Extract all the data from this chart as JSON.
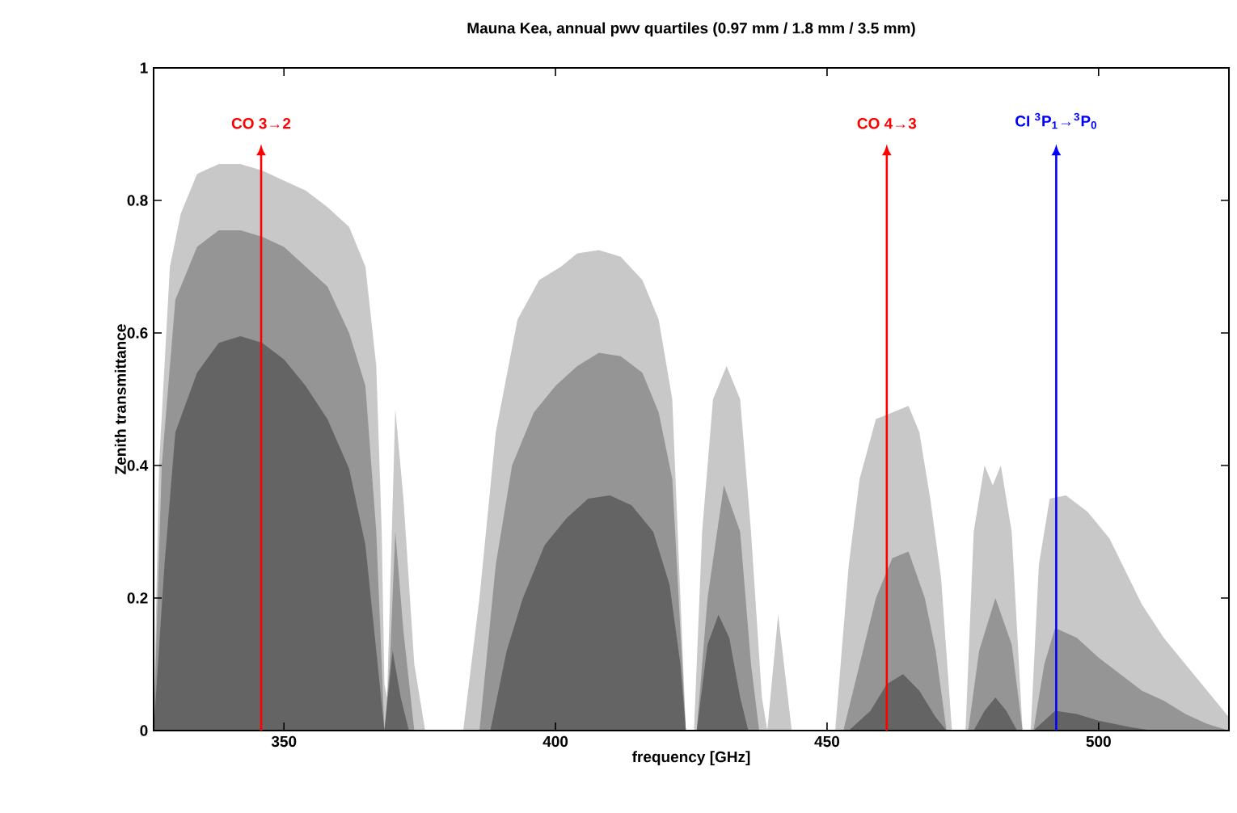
{
  "chart_data": {
    "type": "area",
    "title": "Mauna Kea, annual pwv quartiles (0.97 mm / 1.8 mm / 3.5 mm)",
    "xlabel": "frequency [GHz]",
    "ylabel": "Zenith transmittance",
    "xlim": [
      326,
      524
    ],
    "ylim": [
      0,
      1
    ],
    "xticks": [
      350,
      400,
      450,
      500
    ],
    "yticks": [
      0,
      0.2,
      0.4,
      0.6,
      0.8,
      1
    ],
    "series": [
      {
        "color": "#c8c8c8",
        "x": [
          326,
          327,
          329,
          331,
          334,
          338,
          342,
          346,
          350,
          354,
          358,
          362,
          365,
          367,
          368,
          368.5,
          369,
          370.5,
          372,
          374,
          376,
          383,
          386,
          389,
          393,
          397,
          401,
          404,
          408,
          412,
          416,
          419,
          421.5,
          423,
          424,
          425.5,
          427,
          429,
          431.5,
          434,
          436,
          438,
          439,
          441,
          443.5,
          451.5,
          454,
          456,
          459,
          462,
          465,
          467,
          469,
          471,
          473,
          475.5,
          477,
          479,
          480.5,
          482,
          484,
          486,
          487.5,
          489,
          491,
          494,
          498,
          502,
          505,
          508,
          512,
          516,
          520,
          524
        ],
        "values": [
          0,
          0.4,
          0.7,
          0.78,
          0.84,
          0.855,
          0.855,
          0.845,
          0.83,
          0.815,
          0.79,
          0.76,
          0.7,
          0.55,
          0.3,
          0.07,
          0.05,
          0.485,
          0.35,
          0.1,
          0,
          0,
          0.2,
          0.45,
          0.62,
          0.68,
          0.7,
          0.72,
          0.725,
          0.715,
          0.68,
          0.62,
          0.5,
          0.2,
          0,
          0,
          0.3,
          0.5,
          0.55,
          0.5,
          0.3,
          0.05,
          0,
          0.175,
          0,
          0,
          0.25,
          0.38,
          0.47,
          0.48,
          0.49,
          0.45,
          0.35,
          0.23,
          0,
          0,
          0.3,
          0.4,
          0.37,
          0.4,
          0.3,
          0,
          0,
          0.25,
          0.35,
          0.355,
          0.33,
          0.29,
          0.24,
          0.19,
          0.14,
          0.1,
          0.06,
          0.02
        ]
      },
      {
        "color": "#959595",
        "x": [
          326,
          327.5,
          330,
          334,
          338,
          342,
          346,
          350,
          354,
          358,
          362,
          365,
          367,
          368.5,
          369.5,
          370.5,
          372,
          374,
          386,
          389,
          392,
          396,
          400,
          404,
          408,
          412,
          416,
          419,
          421.5,
          423,
          424,
          426,
          428,
          431,
          434,
          436,
          437.5,
          453,
          456,
          459,
          462,
          465,
          468,
          470,
          472,
          476,
          478,
          481,
          484,
          486,
          488,
          490,
          492,
          496,
          500,
          504,
          508,
          512,
          516,
          520,
          524
        ],
        "values": [
          0,
          0.4,
          0.65,
          0.73,
          0.755,
          0.755,
          0.745,
          0.73,
          0.7,
          0.67,
          0.6,
          0.52,
          0.3,
          0,
          0.1,
          0.3,
          0.15,
          0,
          0,
          0.25,
          0.4,
          0.48,
          0.52,
          0.55,
          0.57,
          0.565,
          0.54,
          0.48,
          0.38,
          0.15,
          0,
          0,
          0.2,
          0.37,
          0.3,
          0.1,
          0,
          0,
          0.1,
          0.2,
          0.26,
          0.27,
          0.2,
          0.12,
          0,
          0,
          0.12,
          0.2,
          0.13,
          0,
          0,
          0.1,
          0.155,
          0.14,
          0.11,
          0.085,
          0.06,
          0.045,
          0.025,
          0.01,
          0
        ]
      },
      {
        "color": "#646464",
        "x": [
          326,
          328,
          330,
          334,
          338,
          342,
          346,
          350,
          354,
          358,
          362,
          365,
          367,
          368.5,
          370,
          371.5,
          373,
          388,
          391,
          394,
          398,
          402,
          406,
          410,
          414,
          418,
          421,
          423,
          424,
          426,
          428,
          430,
          432,
          434,
          435.5,
          454,
          458,
          461,
          464,
          467,
          470,
          472,
          477,
          479,
          481,
          483,
          485,
          488,
          492,
          496,
          500,
          506,
          510
        ],
        "values": [
          0,
          0.25,
          0.45,
          0.54,
          0.585,
          0.595,
          0.585,
          0.56,
          0.52,
          0.47,
          0.395,
          0.28,
          0.12,
          0,
          0.12,
          0.05,
          0,
          0,
          0.12,
          0.2,
          0.28,
          0.32,
          0.35,
          0.355,
          0.34,
          0.3,
          0.22,
          0.1,
          0,
          0,
          0.13,
          0.175,
          0.14,
          0.05,
          0,
          0,
          0.03,
          0.07,
          0.085,
          0.06,
          0.02,
          0,
          0,
          0.03,
          0.05,
          0.03,
          0,
          0,
          0.03,
          0.025,
          0.015,
          0.005,
          0
        ]
      }
    ],
    "ref_lines": [
      {
        "axis": "x",
        "value": 345.8,
        "label": "CO 3→2",
        "color": "#ff0000"
      },
      {
        "axis": "x",
        "value": 461.0,
        "label": "CO 4→3",
        "color": "#ff0000"
      },
      {
        "axis": "x",
        "value": 492.2,
        "label": "CI $^{3}$P$_{1}$→$^{3}$P$_{0}$",
        "color": "#0000ff"
      }
    ]
  }
}
